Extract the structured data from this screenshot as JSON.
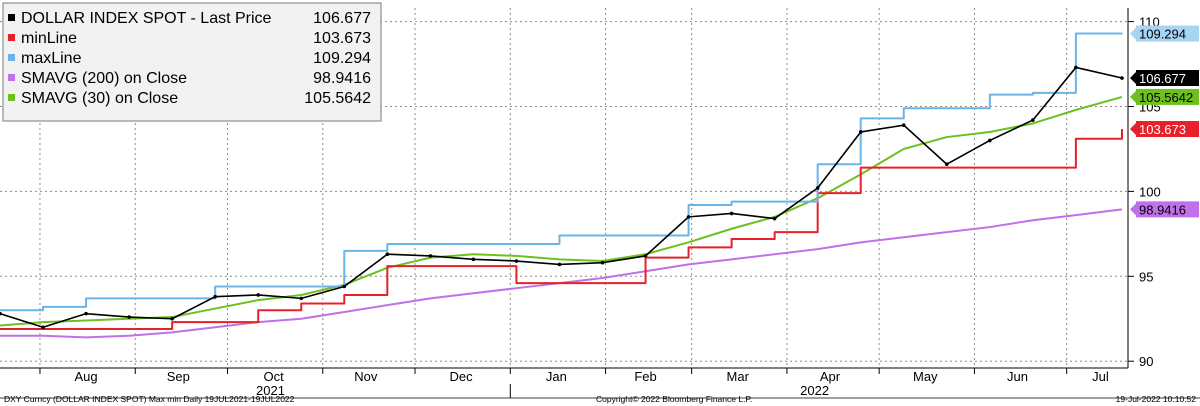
{
  "chart_data": {
    "type": "line",
    "title": "",
    "xlabel": "",
    "ylabel": "",
    "ylim": [
      89.6,
      110.8
    ],
    "y_ticks": [
      90,
      95,
      100,
      105,
      110
    ],
    "y_tick_labels": [
      "90",
      "95",
      "100",
      "105",
      "110"
    ],
    "grid": true,
    "legend_placement": "top-left",
    "x_month_labels": [
      "Aug",
      "Sep",
      "Oct",
      "Nov",
      "Dec",
      "Jan",
      "Feb",
      "Mar",
      "Apr",
      "May",
      "Jun",
      "Jul"
    ],
    "x_year_labels": [
      "2021",
      "2022"
    ],
    "dates": [
      "2021-07-19",
      "2021-08-02",
      "2021-08-16",
      "2021-08-30",
      "2021-09-13",
      "2021-09-27",
      "2021-10-11",
      "2021-10-25",
      "2021-11-08",
      "2021-11-22",
      "2021-12-06",
      "2021-12-20",
      "2022-01-03",
      "2022-01-17",
      "2022-01-31",
      "2022-02-14",
      "2022-02-28",
      "2022-03-14",
      "2022-03-28",
      "2022-04-11",
      "2022-04-25",
      "2022-05-09",
      "2022-05-23",
      "2022-06-06",
      "2022-06-20",
      "2022-07-04",
      "2022-07-19"
    ],
    "legend": [
      {
        "label": "DOLLAR INDEX SPOT - Last Price",
        "value": "106.677",
        "color": "#000000"
      },
      {
        "label": "minLine",
        "value": "103.673",
        "color": "#e8202a"
      },
      {
        "label": "maxLine",
        "value": "109.294",
        "color": "#6ab4e8"
      },
      {
        "label": "SMAVG (200)  on Close",
        "value": "98.9416",
        "color": "#c070e8"
      },
      {
        "label": "SMAVG (30)  on Close",
        "value": "105.5642",
        "color": "#6cc020"
      }
    ],
    "series": [
      {
        "name": "DOLLAR INDEX SPOT - Last Price",
        "color": "#000000",
        "values": [
          92.8,
          92.0,
          92.8,
          92.6,
          92.5,
          93.8,
          93.9,
          93.7,
          94.4,
          96.3,
          96.2,
          96.0,
          95.9,
          95.7,
          95.8,
          96.2,
          98.5,
          98.7,
          98.4,
          100.2,
          103.5,
          103.9,
          101.6,
          103.0,
          104.2,
          107.3,
          106.677
        ]
      },
      {
        "name": "minLine",
        "color": "#e8202a",
        "values": [
          91.9,
          91.9,
          91.9,
          91.9,
          92.3,
          92.3,
          93.0,
          93.4,
          93.9,
          95.6,
          95.6,
          95.6,
          94.6,
          94.6,
          94.6,
          96.1,
          96.7,
          97.2,
          97.6,
          99.9,
          101.4,
          101.4,
          101.4,
          101.4,
          101.4,
          103.1,
          103.673
        ]
      },
      {
        "name": "maxLine",
        "color": "#6ab4e8",
        "values": [
          93.0,
          93.2,
          93.7,
          93.7,
          93.7,
          94.4,
          94.4,
          94.4,
          96.5,
          96.9,
          96.9,
          96.9,
          96.9,
          97.4,
          97.4,
          97.4,
          99.2,
          99.4,
          99.4,
          101.6,
          104.3,
          104.9,
          104.9,
          105.7,
          105.8,
          109.3,
          109.294
        ]
      },
      {
        "name": "SMAVG (200)  on Close",
        "color": "#c070e8",
        "values": [
          91.5,
          91.5,
          91.4,
          91.5,
          91.7,
          92.0,
          92.3,
          92.5,
          92.9,
          93.3,
          93.7,
          94.0,
          94.3,
          94.6,
          94.9,
          95.3,
          95.7,
          96.0,
          96.3,
          96.6,
          97.0,
          97.3,
          97.6,
          97.9,
          98.3,
          98.6,
          98.9416
        ]
      },
      {
        "name": "SMAVG (30)  on Close",
        "color": "#6cc020",
        "values": [
          92.1,
          92.3,
          92.4,
          92.5,
          92.6,
          93.1,
          93.6,
          93.9,
          94.5,
          95.5,
          96.1,
          96.3,
          96.2,
          96.0,
          95.9,
          96.3,
          97.0,
          97.8,
          98.5,
          99.6,
          101.0,
          102.5,
          103.2,
          103.5,
          104.0,
          104.8,
          105.5642
        ]
      }
    ],
    "right_tags": [
      {
        "value": 109.294,
        "label": "109.294",
        "bg": "#a8d4f4",
        "fg": "#000000"
      },
      {
        "value": 106.677,
        "label": "106.677",
        "bg": "#000000",
        "fg": "#ffffff"
      },
      {
        "value": 105.5642,
        "label": "105.5642",
        "bg": "#6cc020",
        "fg": "#000000"
      },
      {
        "value": 103.673,
        "label": "103.673",
        "bg": "#e8202a",
        "fg": "#ffffff"
      },
      {
        "value": 98.9416,
        "label": "98.9416",
        "bg": "#c070e8",
        "fg": "#000000"
      }
    ]
  },
  "footer": {
    "left": "DXY Curncy (DOLLAR INDEX SPOT) Max min  Daily 19JUL2021-19JUL2022",
    "center": "Copyright© 2022 Bloomberg Finance L.P.",
    "right": "19-Jul-2022 10:10:52"
  }
}
